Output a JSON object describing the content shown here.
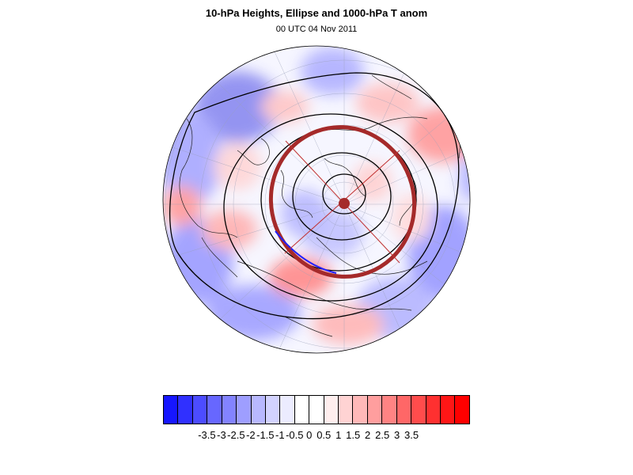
{
  "title": "10-hPa Heights, Ellipse and 1000-hPa T anom",
  "subtitle": "00 UTC 04 Nov 2011",
  "colorbar": {
    "colors": [
      "#1616ff",
      "#3030ff",
      "#4c4cff",
      "#6767ff",
      "#8383ff",
      "#9e9eff",
      "#b8b8ff",
      "#d3d3ff",
      "#ececff",
      "#ffffff",
      "#ffffff",
      "#ffeeee",
      "#ffd3d3",
      "#ffb8b8",
      "#ff9e9e",
      "#ff8383",
      "#ff6767",
      "#ff4c4c",
      "#ff3030",
      "#ff1616",
      "#ff0000"
    ],
    "labels": [
      "-3.5",
      "-3",
      "-2.5",
      "-2",
      "-1.5",
      "-1",
      "-0.5",
      "0",
      "0.5",
      "1",
      "1.5",
      "2",
      "2.5",
      "3",
      "3.5"
    ]
  },
  "ellipse_color": "#a52a2a"
}
